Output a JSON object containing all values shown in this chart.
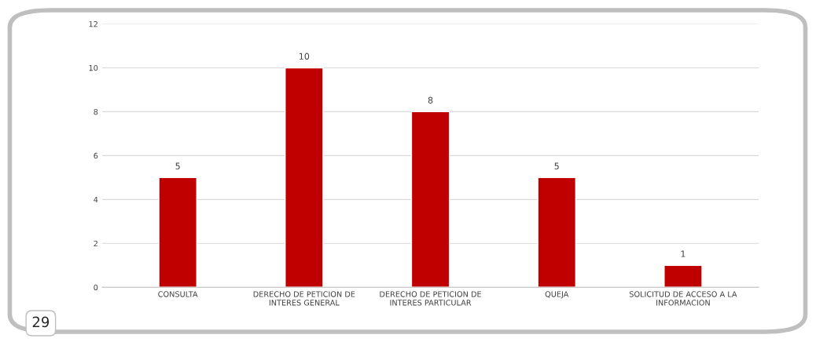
{
  "chart_data": {
    "type": "bar",
    "categories": [
      "CONSULTA",
      "DERECHO DE PETICION DE\nINTERES GENERAL",
      "DERECHO DE PETICION DE\nINTERES PARTICULAR",
      "QUEJA",
      "SOLICITUD DE ACCESO A LA\nINFORMACION"
    ],
    "values": [
      5,
      10,
      8,
      5,
      1
    ],
    "color": "#c00000",
    "ylim": [
      0,
      12
    ],
    "yticks": [
      0,
      2,
      4,
      6,
      8,
      10,
      12
    ],
    "grid": "y",
    "data_labels": true,
    "annotations": [
      "29"
    ]
  }
}
